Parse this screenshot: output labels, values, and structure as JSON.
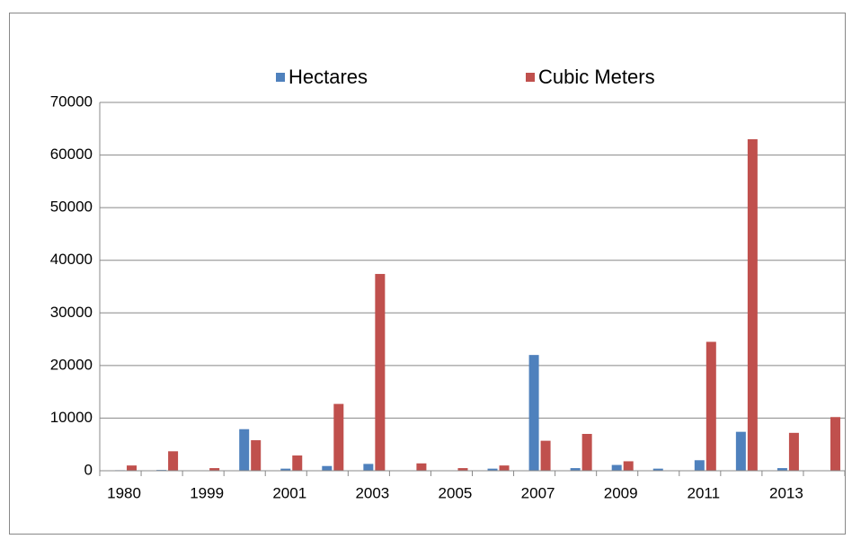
{
  "chart_data": {
    "type": "bar",
    "categories": [
      "1980",
      null,
      "1999",
      null,
      "2001",
      null,
      "2003",
      null,
      "2005",
      null,
      "2007",
      null,
      "2009",
      null,
      "2011",
      null,
      "2013",
      null
    ],
    "series": [
      {
        "name": "Hectares",
        "color": "#4f81bd",
        "values": [
          100,
          150,
          0,
          7900,
          400,
          900,
          1300,
          0,
          0,
          400,
          22000,
          500,
          1100,
          400,
          2000,
          7400,
          500,
          0
        ]
      },
      {
        "name": "Cubic Meters",
        "color": "#c0504d",
        "values": [
          1000,
          3700,
          500,
          5800,
          2900,
          12700,
          37400,
          1400,
          500,
          1000,
          5700,
          7000,
          1800,
          0,
          24500,
          63000,
          7200,
          10200
        ]
      }
    ],
    "ylim": [
      0,
      70000
    ],
    "yticks": [
      0,
      10000,
      20000,
      30000,
      40000,
      50000,
      60000,
      70000
    ],
    "grid": true,
    "legend": "top"
  }
}
